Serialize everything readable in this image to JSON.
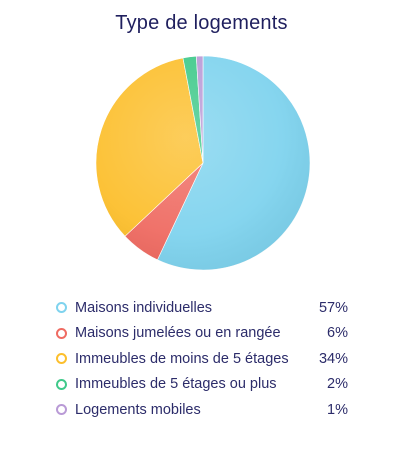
{
  "chart_data": {
    "type": "pie",
    "title": "Type de logements",
    "slices": [
      {
        "label": "Maisons individuelles",
        "value": 57,
        "value_label": "57%",
        "color": "#7fd3ee"
      },
      {
        "label": "Maisons jumelées ou en rangée",
        "value": 6,
        "value_label": "6%",
        "color": "#ef6b62"
      },
      {
        "label": "Immeubles de moins de 5 étages",
        "value": 34,
        "value_label": "34%",
        "color": "#fcbf2d"
      },
      {
        "label": "Immeubles de 5 étages ou plus",
        "value": 2,
        "value_label": "2%",
        "color": "#3fc98a"
      },
      {
        "label": "Logements mobiles",
        "value": 1,
        "value_label": "1%",
        "color": "#b99ad6"
      }
    ],
    "legend_position": "bottom"
  }
}
